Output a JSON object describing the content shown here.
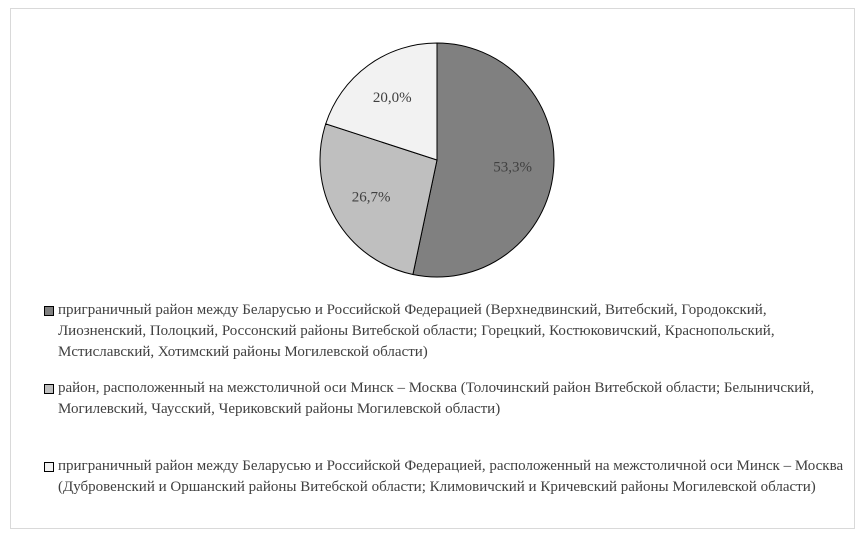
{
  "chart_data": {
    "type": "pie",
    "categories": [
      "приграничный район между Беларусью и Российской Федерацией (Верхнедвинский, Витебский, Городокский, Лиозненский, Полоцкий, Россонский районы Витебской области; Горецкий, Костюковичский, Краснопольский, Мстиславский, Хотимский районы Могилевской области)",
      "район, расположенный на межстоличной оси Минск – Москва (Толочинский район Витебской области; Белыничский, Могилевский, Чаусский, Чериковский районы Могилевской области)",
      "приграничный район между Беларусью и Российской Федерацией, расположенный на межстоличной оси Минск – Москва (Дубровенский и Оршанский районы Витебской области; Климовичский и Кричевский районы Могилевской области)"
    ],
    "values": [
      53.3,
      26.7,
      20.0
    ],
    "value_labels": [
      "53,3%",
      "26,7%",
      "20,0%"
    ],
    "colors": [
      "#808080",
      "#bfbfbf",
      "#f2f2f2"
    ]
  }
}
